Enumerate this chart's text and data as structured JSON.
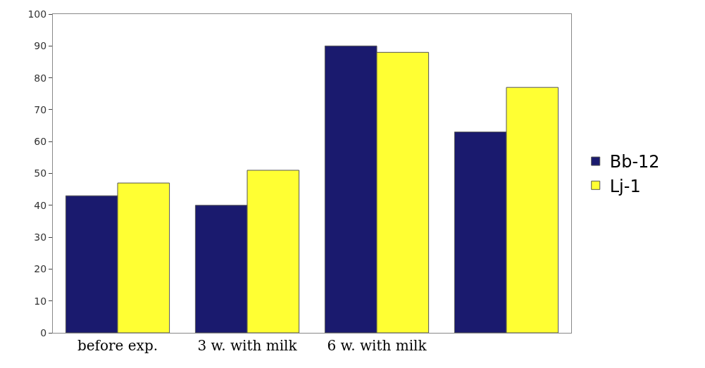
{
  "chart_data": {
    "type": "bar",
    "categories": [
      "before exp.",
      "3 w. with milk",
      "6 w. with milk",
      null
    ],
    "series": [
      {
        "name": "Bb-12",
        "color": "#1a1a6e",
        "values": [
          43,
          40,
          90,
          63
        ]
      },
      {
        "name": "Lj-1",
        "color": "#ffff33",
        "values": [
          47,
          51,
          88,
          77
        ]
      }
    ],
    "ylim": [
      0,
      100
    ],
    "yticks": [
      0,
      10,
      20,
      30,
      40,
      50,
      60,
      70,
      80,
      90,
      100
    ],
    "grid": false,
    "legend": "right"
  }
}
